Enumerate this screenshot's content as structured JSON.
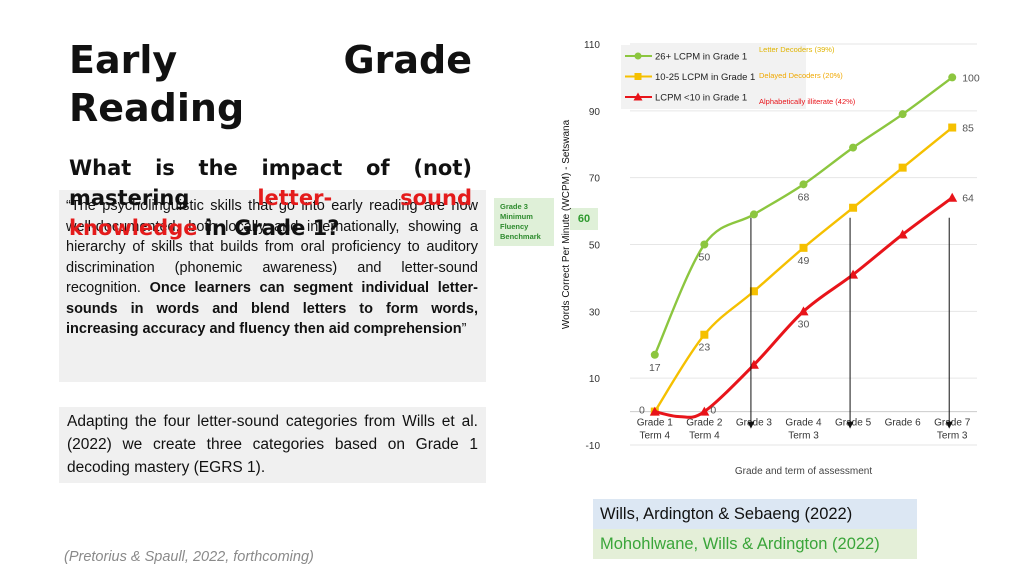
{
  "slide": {
    "title_line1_a": "Early",
    "title_line1_b": "Grade",
    "title_line2": "Reading",
    "question_a": "What is the impact of (not)",
    "question_b1": "mastering",
    "question_b2": "letter-",
    "question_b3": "sound",
    "question_c1": "knowledge",
    "question_c2": " in Grade 1?",
    "quote_normal": "“The psycholinguistic skills that go into early reading are now well-documented, both locally and internationally, showing a hierarchy of skills that builds from oral proficiency to auditory discrimination (phonemic awareness) and letter-sound recognition. ",
    "quote_bold": "Once learners can segment individual letter-sounds in words and blend letters to form words, increasing accuracy and fluency then aid comprehension",
    "quote_end": "”",
    "adapt_text": "Adapting the four letter-sound categories from Wills et al. (2022) we create three categories based on Grade 1 decoding mastery (EGRS 1).",
    "footnote": "(Pretorius & Spaull, 2022, forthcoming)",
    "benchmark_label": "Grade 3 Minimum Fluency Benchmark",
    "benchmark_value": "60",
    "ref1": "Wills, Ardington & Sebaeng (2022)",
    "ref2": "Mohohlwane, Wills & Ardington (2022)"
  },
  "colors": {
    "green": "#8cc63f",
    "yellow": "#f5c000",
    "red": "#e8141a",
    "grid": "#e6e6e6"
  },
  "chart_data": {
    "type": "line",
    "xlabel": "Grade and term of assessment",
    "ylabel": "Words Correct Per Minute (WCPM) - Setswana",
    "ylim": [
      -10,
      110
    ],
    "yticks": [
      -10,
      10,
      30,
      50,
      70,
      90,
      110
    ],
    "categories": [
      [
        "Grade 1",
        "Term 4"
      ],
      [
        "Grade 2",
        "Term 4"
      ],
      [
        "Grade 3",
        ""
      ],
      [
        "Grade 4",
        "Term 3"
      ],
      [
        "Grade 5",
        ""
      ],
      [
        "Grade 6",
        ""
      ],
      [
        "Grade 7",
        "Term 3"
      ]
    ],
    "series": [
      {
        "name": "26+ LCPM in Grade 1",
        "color": "#8cc63f",
        "marker": "circle",
        "x": [
          0,
          1,
          2,
          3,
          4,
          5,
          6
        ],
        "values": [
          17,
          50,
          59,
          68,
          79,
          89,
          100
        ],
        "labels": [
          "17",
          "50",
          "",
          "68",
          "",
          "",
          "100"
        ]
      },
      {
        "name": "10-25 LCPM in Grade 1",
        "color": "#f5c000",
        "marker": "square",
        "x": [
          0,
          1,
          2,
          3,
          4,
          5,
          6
        ],
        "values": [
          0,
          23,
          36,
          49,
          61,
          73,
          85
        ],
        "labels": [
          "0",
          "23",
          "",
          "49",
          "",
          "",
          "85"
        ]
      },
      {
        "name": "LCPM <10 in Grade 1",
        "color": "#e8141a",
        "marker": "triangle",
        "x": [
          0,
          0.5,
          1,
          2,
          3,
          4,
          5,
          6
        ],
        "values": [
          0,
          -1.5,
          0,
          14,
          30,
          41,
          53,
          64
        ],
        "labels": [
          "",
          "",
          "0",
          "",
          "30",
          "",
          "",
          "64"
        ]
      }
    ],
    "legend_extra": [
      {
        "text": "Letter Decoders (39%)",
        "color": "#e0b400"
      },
      {
        "text": "Delayed Decoders (20%)",
        "color": "#f0a800"
      },
      {
        "text": "Alphabetically illiterate (42%)",
        "color": "#e8141a"
      }
    ],
    "arrows_at": [
      2,
      4,
      6
    ]
  }
}
